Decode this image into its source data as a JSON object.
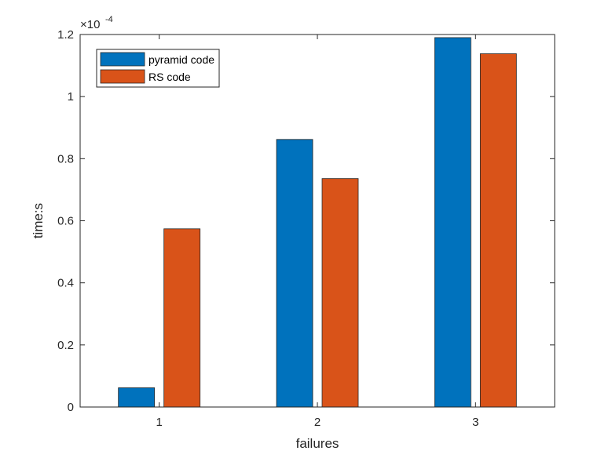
{
  "chart_data": {
    "type": "bar",
    "categories": [
      "1",
      "2",
      "3"
    ],
    "series": [
      {
        "name": "pyramid code",
        "values": [
          0.062,
          0.862,
          1.19
        ],
        "color": "#0072BD"
      },
      {
        "name": "RS code",
        "values": [
          0.574,
          0.736,
          1.138
        ],
        "color": "#D95319"
      }
    ],
    "xlabel": "failures",
    "ylabel": "time:s",
    "ylim": [
      0,
      1.2
    ],
    "yticks": [
      0,
      0.2,
      0.4,
      0.6,
      0.8,
      1,
      1.2
    ],
    "ytick_labels": [
      "0",
      "0.2",
      "0.4",
      "0.6",
      "0.8",
      "1",
      "1.2"
    ],
    "y_exponent_label": "×10",
    "y_exponent_power": "-4",
    "grid": false,
    "legend_position": "top-left"
  }
}
